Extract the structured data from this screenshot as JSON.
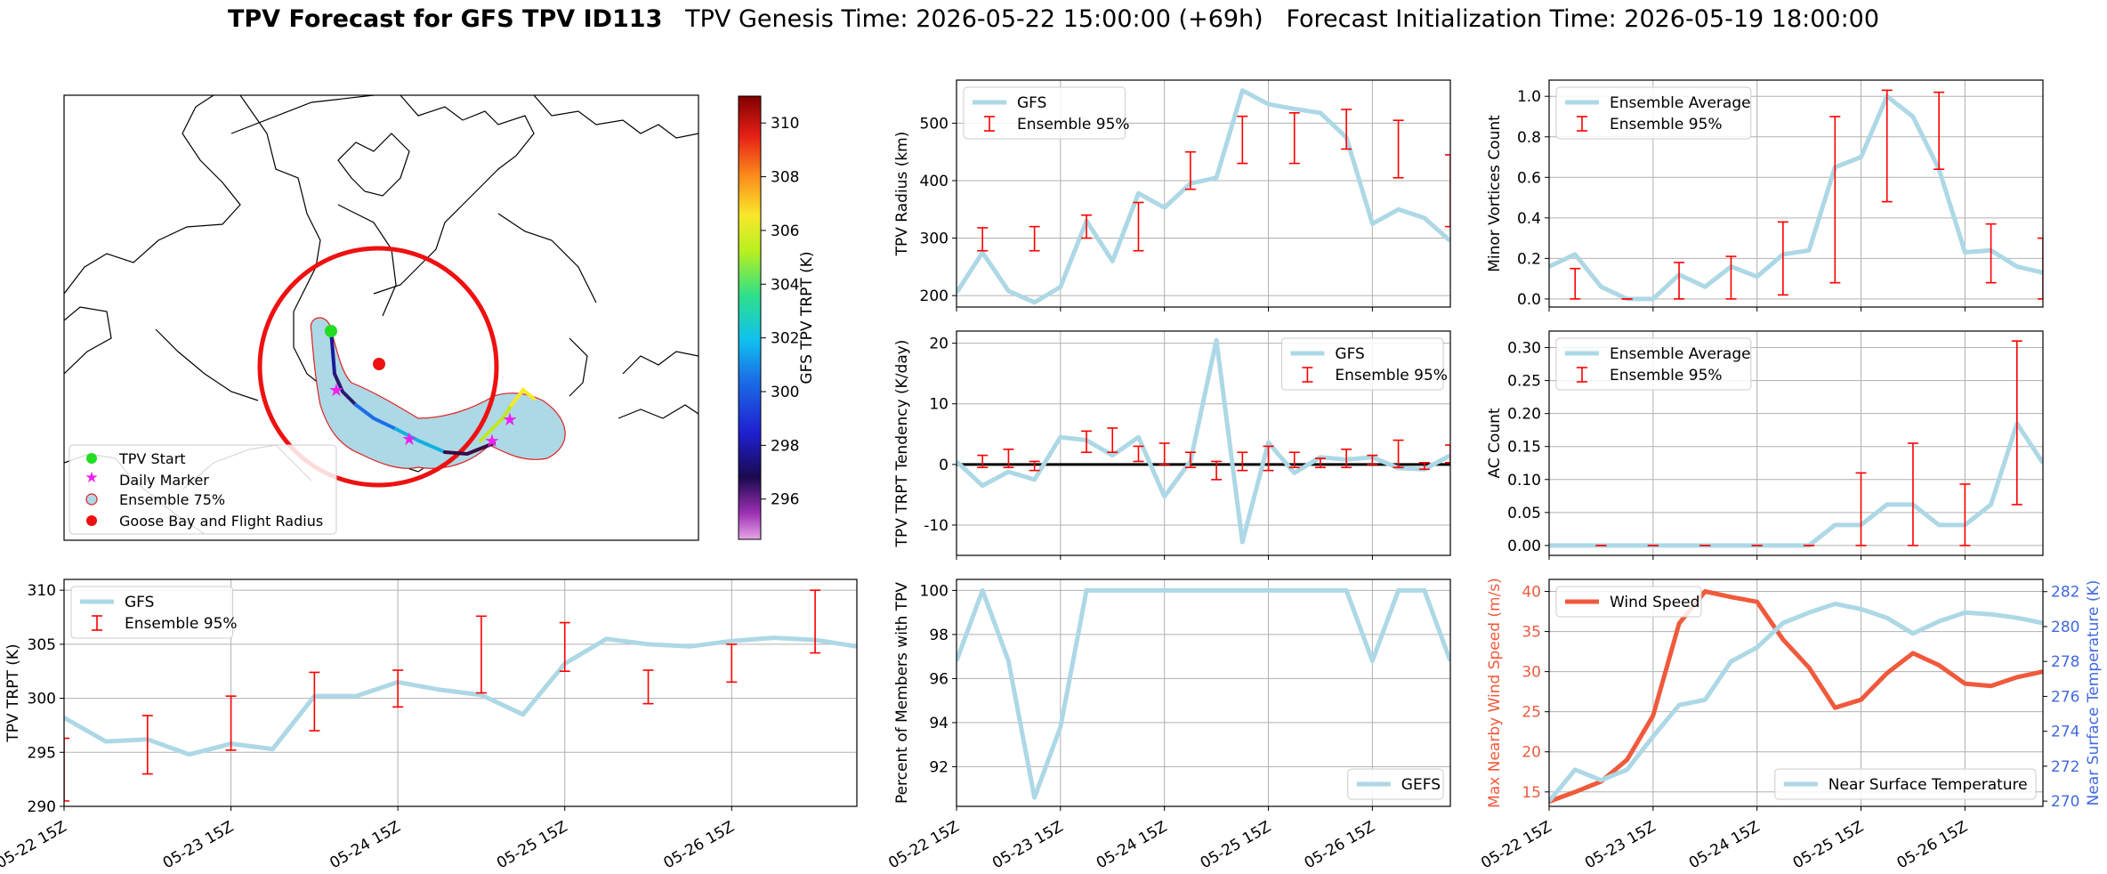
{
  "header": {
    "bold_title": "TPV Forecast for GFS TPV ID113",
    "genesis": "TPV Genesis Time: 2026-05-22 15:00:00 (+69h)",
    "init": "Forecast Initialization Time: 2026-05-19 18:00:00"
  },
  "colors": {
    "gfs_line": "#add8e6",
    "error_bar": "#ff0000",
    "wind": "#f05a3c",
    "temp_axis": "#4169e1",
    "wind_axis": "#f05a3c"
  },
  "map": {
    "legend": [
      "TPV Start",
      "Daily Marker",
      "Ensemble 75%",
      "Goose Bay and Flight Radius"
    ],
    "colorbar": {
      "label": "GFS TPV TRPT (K)",
      "ticks": [
        "296",
        "298",
        "300",
        "302",
        "304",
        "306",
        "308",
        "310"
      ],
      "min": 294.5,
      "max": 311.0
    }
  },
  "x_axis_ticks": [
    "05-22 15Z",
    "05-23 15Z",
    "05-24 15Z",
    "05-25 15Z",
    "05-26 15Z"
  ],
  "chart_data": [
    {
      "id": "radius",
      "type": "line",
      "ylabel": "TPV Radius (km)",
      "ylim": [
        180,
        575
      ],
      "yticks": [
        200,
        300,
        400,
        500
      ],
      "series": [
        {
          "name": "GFS",
          "values": [
            205,
            275,
            208,
            188,
            215,
            330,
            260,
            378,
            353,
            395,
            405,
            557,
            533,
            525,
            518,
            475,
            325,
            350,
            335,
            295
          ]
        }
      ],
      "errors": {
        "name": "Ensemble 95%",
        "x": [
          1,
          3,
          5,
          7,
          9,
          11,
          13,
          15,
          17,
          19
        ],
        "low": [
          278,
          278,
          300,
          278,
          385,
          430,
          430,
          455,
          405,
          320
        ],
        "high": [
          318,
          320,
          340,
          362,
          450,
          512,
          518,
          524,
          505,
          445
        ]
      },
      "legend_pos": "upper-left"
    },
    {
      "id": "minor",
      "type": "line",
      "ylabel": "Minor Vortices Count",
      "ylim": [
        -0.04,
        1.08
      ],
      "yticks": [
        0.0,
        0.2,
        0.4,
        0.6,
        0.8,
        1.0
      ],
      "series": [
        {
          "name": "Ensemble Average",
          "values": [
            0.16,
            0.22,
            0.06,
            0.0,
            0.0,
            0.12,
            0.06,
            0.16,
            0.11,
            0.22,
            0.24,
            0.65,
            0.7,
            1.0,
            0.9,
            0.64,
            0.23,
            0.24,
            0.16,
            0.13
          ]
        }
      ],
      "errors": {
        "name": "Ensemble 95%",
        "x": [
          1,
          3,
          5,
          7,
          9,
          11,
          13,
          15,
          17,
          19
        ],
        "low": [
          0.0,
          0.0,
          0.0,
          0.0,
          0.02,
          0.08,
          0.48,
          0.64,
          0.08,
          0.0
        ],
        "high": [
          0.15,
          0.0,
          0.18,
          0.21,
          0.38,
          0.9,
          1.03,
          1.02,
          0.37,
          0.3
        ]
      },
      "legend_pos": "upper-left"
    },
    {
      "id": "tendency",
      "type": "line",
      "ylabel": "TPV TRPT Tendency (K/day)",
      "ylim": [
        -15,
        22
      ],
      "yticks": [
        -10,
        0,
        10,
        20
      ],
      "zero_line": true,
      "series": [
        {
          "name": "GFS",
          "values": [
            0.5,
            -3.5,
            -1.2,
            -2.5,
            4.5,
            4.0,
            1.5,
            4.5,
            -5.3,
            0.5,
            20.5,
            -12.8,
            3.6,
            -1.4,
            1.2,
            0.8,
            1.2,
            -0.6,
            -0.8,
            1.5
          ]
        }
      ],
      "errors": {
        "name": "Ensemble 95%",
        "x": [
          1,
          2,
          3,
          5,
          6,
          7,
          8,
          9,
          10,
          11,
          12,
          13,
          14,
          15,
          16,
          17,
          18,
          19
        ],
        "low": [
          -0.5,
          -0.5,
          -1.0,
          2.0,
          2.0,
          0.5,
          0.0,
          -0.5,
          -2.5,
          -1.0,
          -1.0,
          -0.5,
          -0.5,
          -0.5,
          0.0,
          -0.5,
          -0.8,
          0.3
        ],
        "high": [
          1.5,
          2.5,
          0.5,
          5.5,
          6.0,
          3.0,
          3.5,
          2.0,
          0.5,
          2.0,
          3.0,
          2.0,
          1.0,
          2.5,
          1.5,
          4.0,
          0.3,
          3.2
        ]
      },
      "legend_pos": "upper-right"
    },
    {
      "id": "ac",
      "type": "line",
      "ylabel": "AC Count",
      "ylim": [
        -0.015,
        0.325
      ],
      "yticks": [
        0.0,
        0.05,
        0.1,
        0.15,
        0.2,
        0.25,
        0.3
      ],
      "series": [
        {
          "name": "Ensemble Average",
          "values": [
            0,
            0,
            0,
            0,
            0,
            0,
            0,
            0,
            0,
            0,
            0,
            0.031,
            0.031,
            0.062,
            0.062,
            0.031,
            0.031,
            0.062,
            0.185,
            0.125
          ]
        }
      ],
      "errors": {
        "name": "Ensemble 95%",
        "x": [
          2,
          4,
          6,
          8,
          10,
          12,
          14,
          16,
          18
        ],
        "low": [
          0,
          0,
          0,
          0,
          0,
          0,
          0,
          0,
          0.062
        ],
        "high": [
          0,
          0,
          0,
          0,
          0,
          0.11,
          0.155,
          0.093,
          0.31
        ]
      },
      "legend_pos": "upper-left"
    },
    {
      "id": "trpt",
      "type": "line",
      "ylabel": "TPV TRPT (K)",
      "ylim": [
        290,
        311
      ],
      "yticks": [
        290,
        295,
        300,
        305,
        310
      ],
      "series": [
        {
          "name": "GFS",
          "values": [
            298.2,
            296.0,
            296.2,
            294.8,
            295.8,
            295.3,
            300.2,
            300.2,
            301.5,
            300.8,
            300.3,
            298.5,
            303.2,
            305.5,
            305.0,
            304.8,
            305.3,
            305.6,
            305.4,
            304.8
          ]
        }
      ],
      "errors": {
        "name": "Ensemble 95%",
        "x": [
          0,
          2,
          4,
          6,
          8,
          10,
          12,
          14,
          16,
          18
        ],
        "low": [
          290.5,
          293.0,
          295.2,
          297.0,
          299.2,
          300.5,
          302.5,
          299.5,
          301.5,
          304.2
        ],
        "high": [
          296.3,
          298.4,
          300.2,
          302.4,
          302.6,
          307.6,
          307.0,
          302.6,
          305.0,
          310.0
        ]
      },
      "legend_pos": "upper-left"
    },
    {
      "id": "members",
      "type": "line",
      "ylabel": "Percent of Members with TPV",
      "ylim": [
        90.2,
        100.5
      ],
      "yticks": [
        92,
        94,
        96,
        98,
        100
      ],
      "series": [
        {
          "name": "GEFS",
          "values": [
            96.8,
            100,
            96.8,
            90.6,
            93.8,
            100,
            100,
            100,
            100,
            100,
            100,
            100,
            100,
            100,
            100,
            100,
            96.8,
            100,
            100,
            96.8
          ]
        }
      ],
      "legend_pos": "lower-right"
    },
    {
      "id": "wind",
      "type": "line",
      "ylabel": "Max Nearby Wind Speed (m/s)",
      "y2label": "Near Surface Temperature (K)",
      "ylim": [
        13.2,
        41.5
      ],
      "yticks": [
        15,
        20,
        25,
        30,
        35,
        40
      ],
      "y2lim": [
        269.7,
        282.7
      ],
      "y2ticks": [
        270,
        272,
        274,
        276,
        278,
        280,
        282
      ],
      "series": [
        {
          "name": "Wind Speed",
          "axis": "left",
          "values": [
            13.8,
            15.0,
            16.3,
            19.0,
            24.5,
            36.0,
            40.0,
            39.3,
            38.7,
            34.0,
            30.5,
            25.5,
            26.5,
            29.8,
            32.3,
            30.8,
            28.5,
            28.2,
            29.3,
            30.0
          ]
        },
        {
          "name": "Near Surface Temperature",
          "axis": "right",
          "values": [
            270.0,
            271.8,
            271.2,
            271.8,
            273.7,
            275.5,
            275.8,
            278.0,
            278.8,
            280.2,
            280.8,
            281.3,
            281.0,
            280.5,
            279.6,
            280.3,
            280.8,
            280.7,
            280.5,
            280.2
          ]
        }
      ],
      "legend_pos": "upper-left / lower-right"
    }
  ]
}
